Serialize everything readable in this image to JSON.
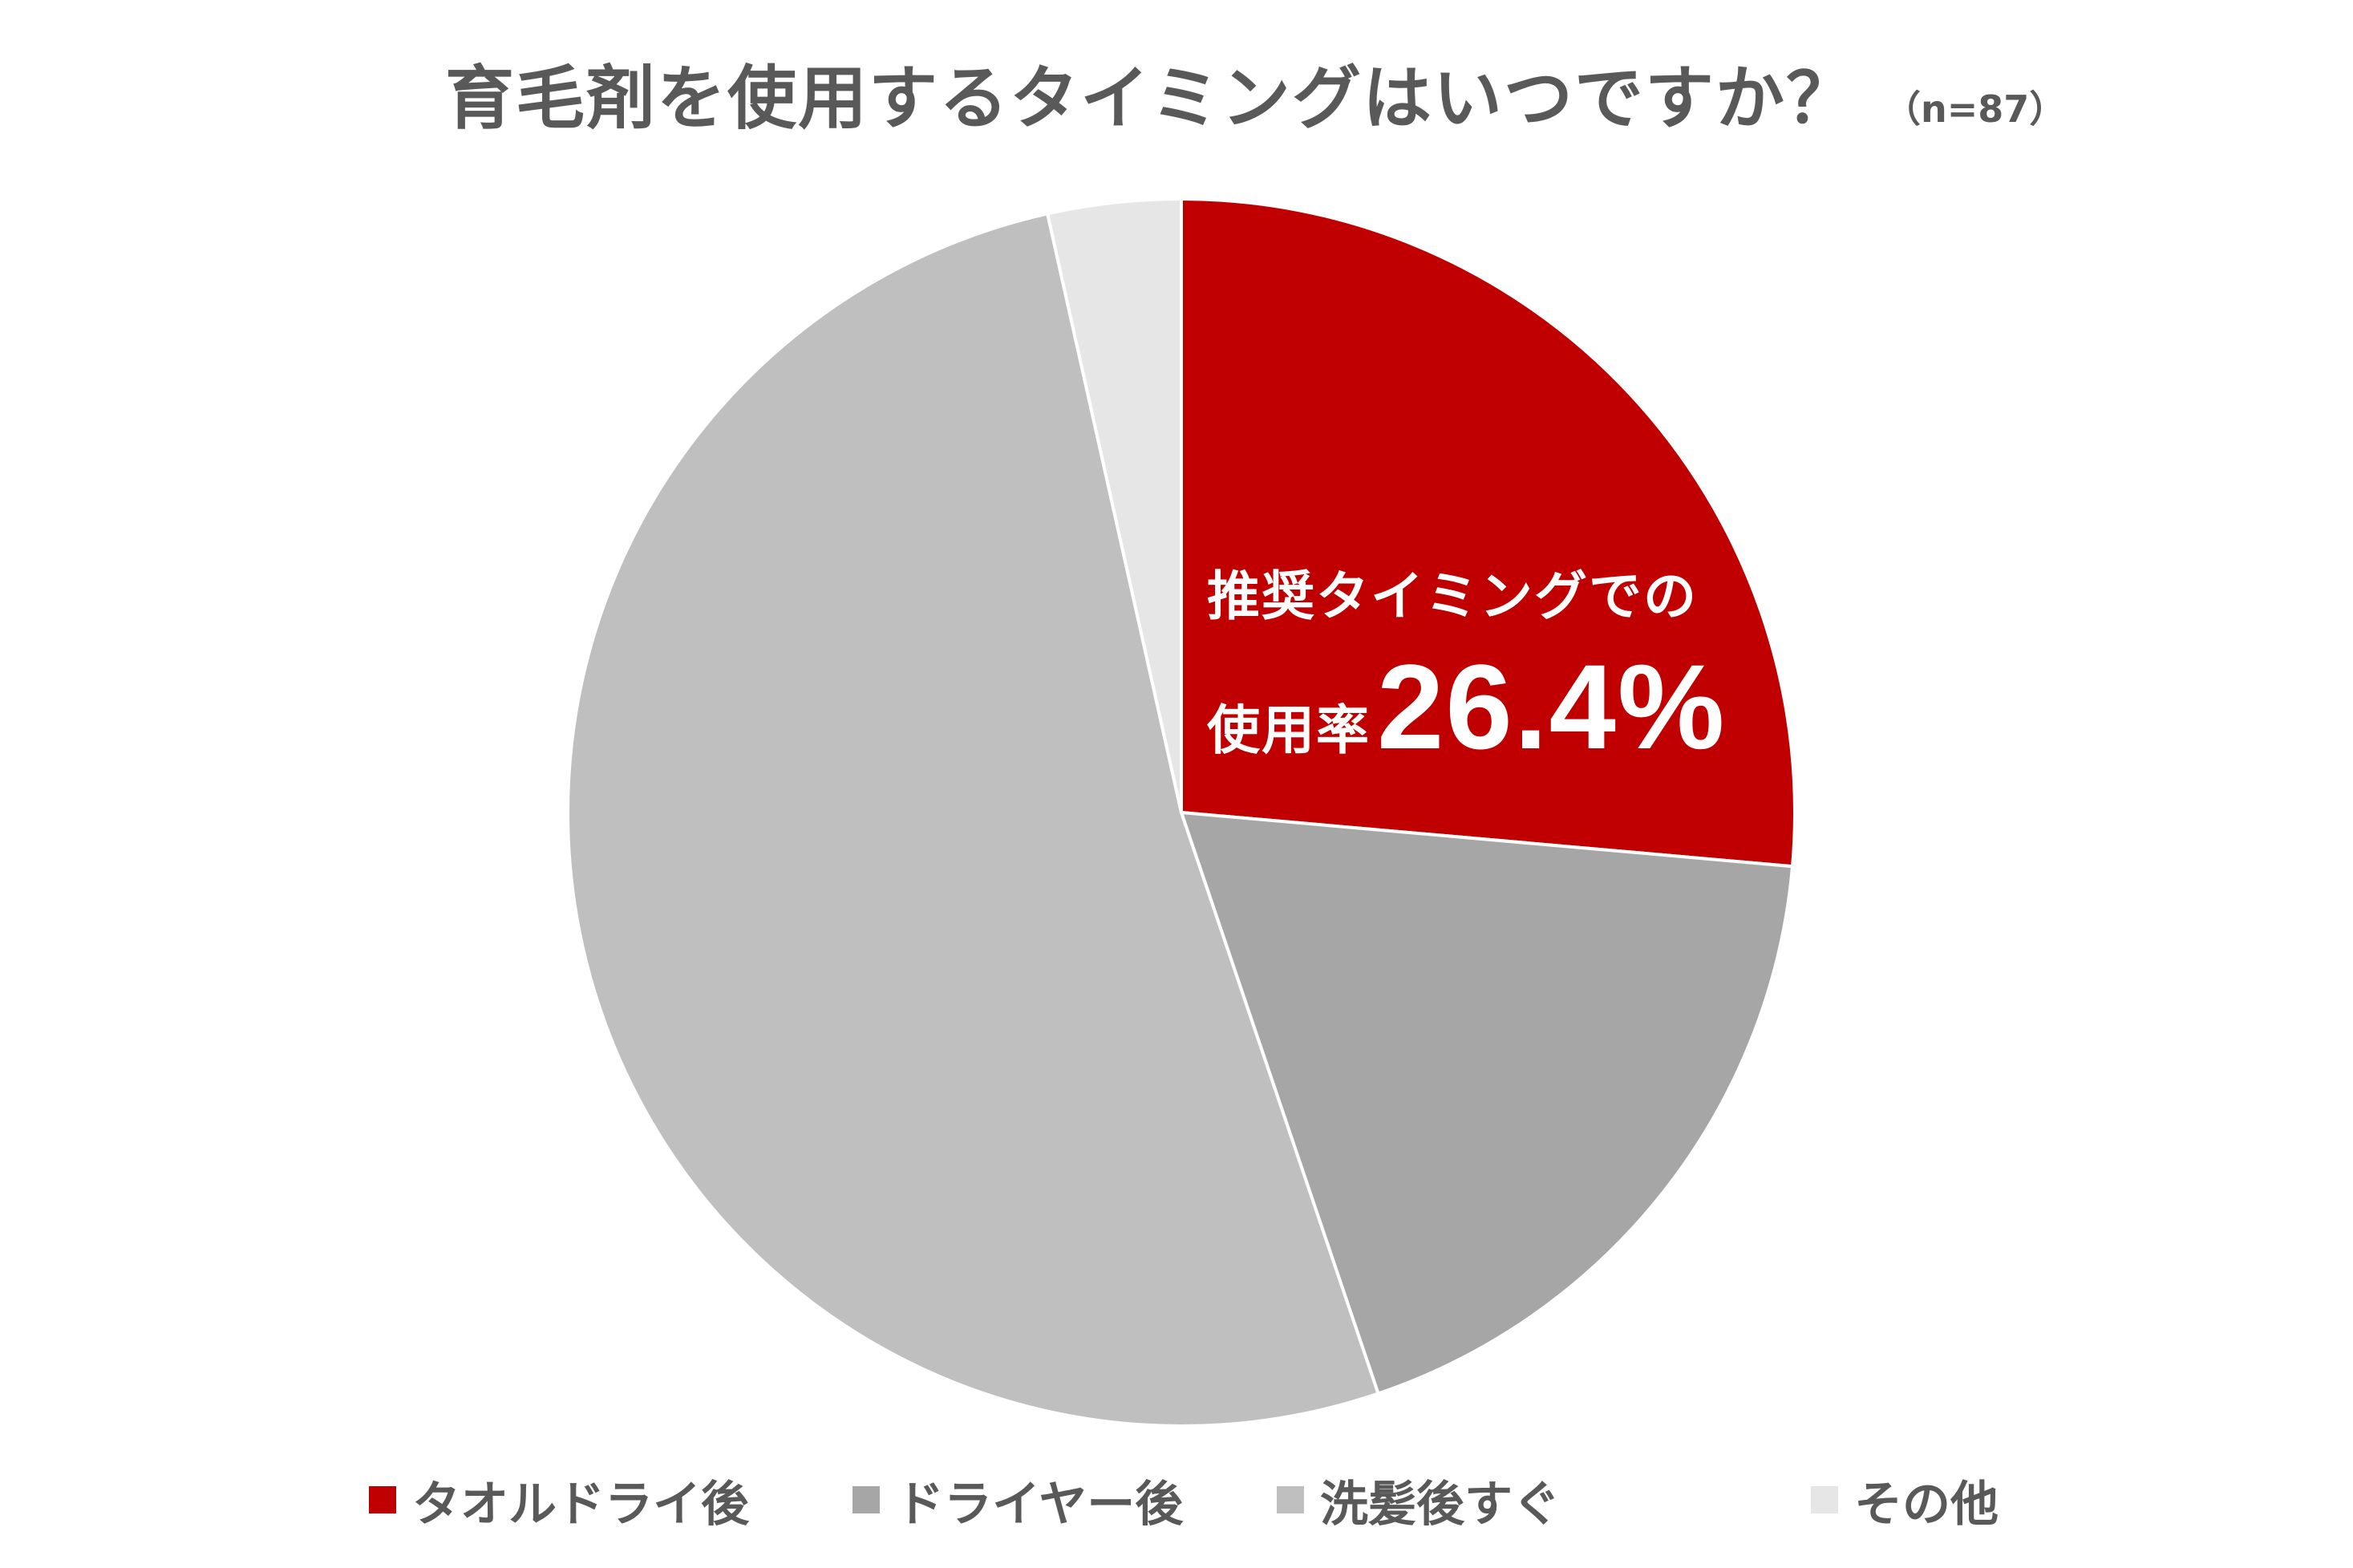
{
  "header": {
    "title": "育毛剤を使用するタイミングはいつですか？",
    "sample_size": "（n=87）"
  },
  "chart_data": {
    "type": "pie",
    "title": "育毛剤を使用するタイミングはいつですか？",
    "categories": [
      "タオルドライ後",
      "ドライヤー後",
      "洗髪後すぐ",
      "その他"
    ],
    "values": [
      26.4,
      18.4,
      51.7,
      3.5
    ],
    "colors": [
      "#C00000",
      "#A6A6A6",
      "#BFBFBF",
      "#E7E6E6"
    ],
    "legend_position": "bottom",
    "annotation": {
      "line1": "推奨タイミングでの",
      "line2_prefix": "使用率",
      "line2_value": "26.4%"
    }
  }
}
